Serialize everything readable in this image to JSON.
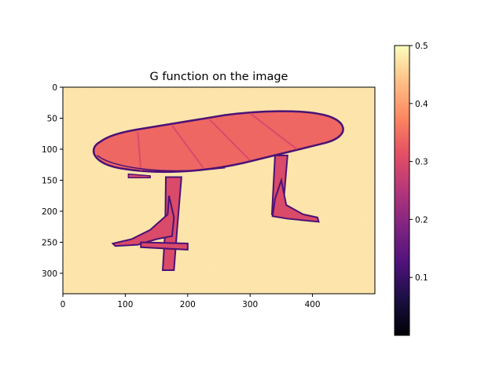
{
  "chart_data": {
    "type": "heatmap",
    "title": "G function on the image",
    "colormap": "magma",
    "image_extent": {
      "x": [
        0,
        500
      ],
      "y": [
        0,
        333
      ]
    },
    "x_ticks": [
      0,
      100,
      200,
      300,
      400
    ],
    "y_ticks": [
      0,
      50,
      100,
      150,
      200,
      250,
      300
    ],
    "colorbar": {
      "range": [
        0.0,
        0.5
      ],
      "ticks": [
        0.1,
        0.2,
        0.3,
        0.4,
        0.5
      ]
    },
    "background_value": 0.48,
    "regions": [
      {
        "name": "table-top",
        "shape": "ellipse-rounded",
        "value": 0.34
      },
      {
        "name": "table-top-planks",
        "shape": "lines",
        "value": 0.3
      },
      {
        "name": "left-leg",
        "shape": "polygon",
        "value": 0.3
      },
      {
        "name": "left-foot",
        "shape": "polygon",
        "value": 0.3
      },
      {
        "name": "right-leg",
        "shape": "polygon",
        "value": 0.3
      },
      {
        "name": "right-foot",
        "shape": "polygon",
        "value": 0.3
      },
      {
        "name": "outlines",
        "shape": "strokes",
        "value": 0.12
      }
    ]
  }
}
